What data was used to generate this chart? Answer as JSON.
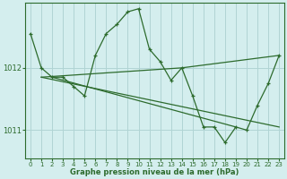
{
  "background_color": "#d4eeee",
  "plot_bg_color": "#d4eeee",
  "grid_color": "#b0d4d4",
  "line_color": "#2d6b2d",
  "marker_color": "#2d6b2d",
  "xlabel": "Graphe pression niveau de la mer (hPa)",
  "xlim": [
    -0.5,
    23.5
  ],
  "ylim": [
    1010.55,
    1013.05
  ],
  "yticks": [
    1011,
    1012
  ],
  "xticks": [
    0,
    1,
    2,
    3,
    4,
    5,
    6,
    7,
    8,
    9,
    10,
    11,
    12,
    13,
    14,
    15,
    16,
    17,
    18,
    19,
    20,
    21,
    22,
    23
  ],
  "series": [
    {
      "x": [
        0,
        1,
        2,
        3,
        4,
        5,
        6,
        7,
        8,
        9,
        10,
        11,
        12,
        13,
        14,
        15,
        16,
        17,
        18,
        19,
        20,
        21,
        22,
        23
      ],
      "y": [
        1012.55,
        1012.0,
        1011.85,
        1011.85,
        1011.7,
        1011.55,
        1012.2,
        1012.55,
        1012.7,
        1012.9,
        1012.95,
        1012.3,
        1012.1,
        1011.8,
        1012.0,
        1011.55,
        1011.05,
        1011.05,
        1010.8,
        1011.05,
        1011.0,
        1011.4,
        1011.75,
        1012.2
      ]
    },
    {
      "x": [
        1,
        23
      ],
      "y": [
        1011.85,
        1011.05
      ]
    },
    {
      "x": [
        1,
        14,
        23
      ],
      "y": [
        1011.85,
        1012.0,
        1012.2
      ]
    },
    {
      "x": [
        2,
        19
      ],
      "y": [
        1011.85,
        1011.05
      ]
    }
  ]
}
